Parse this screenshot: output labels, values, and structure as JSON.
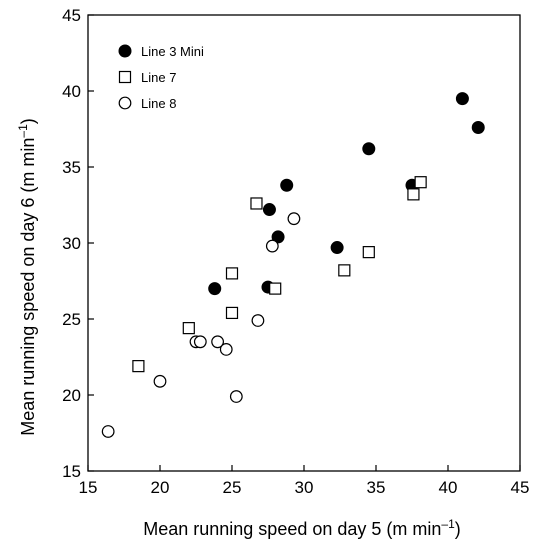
{
  "chart_data": {
    "type": "scatter",
    "title": "",
    "xlabel": "Mean running speed on day 5 (m min",
    "xlabel_sup": "–1",
    "xlabel_tail": ")",
    "ylabel": "Mean running speed on day 6 (m min",
    "ylabel_sup": "–1",
    "ylabel_tail": ")",
    "xlim": [
      15,
      45
    ],
    "ylim": [
      15,
      45
    ],
    "xticks": [
      15,
      20,
      25,
      30,
      35,
      40,
      45
    ],
    "yticks": [
      15,
      20,
      25,
      30,
      35,
      40,
      45
    ],
    "grid": false,
    "legend_position": "top-left",
    "series": [
      {
        "name": "Line 3 Mini",
        "marker": "filled-circle",
        "color": "#000000",
        "points": [
          [
            41.0,
            39.5
          ],
          [
            42.1,
            37.6
          ],
          [
            34.5,
            36.2
          ],
          [
            37.5,
            33.8
          ],
          [
            28.8,
            33.8
          ],
          [
            27.6,
            32.2
          ],
          [
            28.2,
            30.4
          ],
          [
            32.3,
            29.7
          ],
          [
            27.5,
            27.1
          ],
          [
            23.8,
            27.0
          ]
        ]
      },
      {
        "name": "Line 7",
        "marker": "open-square",
        "color": "#000000",
        "points": [
          [
            38.1,
            34.0
          ],
          [
            37.6,
            33.2
          ],
          [
            26.7,
            32.6
          ],
          [
            25.0,
            28.0
          ],
          [
            32.8,
            28.2
          ],
          [
            34.5,
            29.4
          ],
          [
            28.0,
            27.0
          ],
          [
            25.0,
            25.4
          ],
          [
            22.0,
            24.4
          ],
          [
            18.5,
            21.9
          ]
        ]
      },
      {
        "name": "Line 8",
        "marker": "open-circle",
        "color": "#000000",
        "points": [
          [
            29.3,
            31.6
          ],
          [
            27.8,
            29.8
          ],
          [
            26.8,
            24.9
          ],
          [
            22.5,
            23.5
          ],
          [
            22.8,
            23.5
          ],
          [
            24.0,
            23.5
          ],
          [
            24.6,
            23.0
          ],
          [
            20.0,
            20.9
          ],
          [
            25.3,
            19.9
          ],
          [
            16.4,
            17.6
          ]
        ]
      }
    ]
  }
}
